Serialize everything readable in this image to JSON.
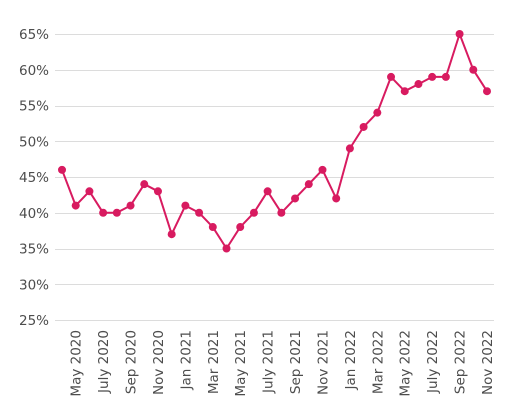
{
  "chart_data": {
    "type": "line",
    "x": [
      "Apr 2020",
      "May 2020",
      "Jun 2020",
      "July 2020",
      "Aug 2020",
      "Sep 2020",
      "Oct 2020",
      "Nov 2020",
      "Dec 2020",
      "Jan 2021",
      "Feb 2021",
      "Mar 2021",
      "Apr 2021",
      "May 2021",
      "Jun 2021",
      "July 2021",
      "Aug 2021",
      "Sep 2021",
      "Oct 2021",
      "Nov 2021",
      "Dec 2021",
      "Jan 2022",
      "Feb 2022",
      "Mar 2022",
      "Apr 2022",
      "May 2022",
      "Jun 2022",
      "July 2022",
      "Aug 2022",
      "Sep 2022",
      "Oct 2022",
      "Nov 2022"
    ],
    "x_tick_labels": [
      "May 2020",
      "July 2020",
      "Sep 2020",
      "Nov 2020",
      "Jan 2021",
      "Mar 2021",
      "May 2021",
      "July 2021",
      "Sep 2021",
      "Nov 2021",
      "Jan 2022",
      "Mar 2022",
      "May 2022",
      "July 2022",
      "Sep 2022",
      "Nov 2022"
    ],
    "series": [
      {
        "values": [
          46,
          41,
          43,
          40,
          40,
          41,
          44,
          43,
          37,
          41,
          40,
          38,
          35,
          38,
          40,
          43,
          40,
          42,
          44,
          46,
          42,
          49,
          52,
          54,
          59,
          57,
          58,
          59,
          59,
          65,
          60,
          57
        ],
        "color": "#d81b60"
      }
    ],
    "y_ticks": [
      "25%",
      "30%",
      "35%",
      "40%",
      "45%",
      "50%",
      "55%",
      "60%",
      "65%"
    ],
    "ylim": [
      25,
      65
    ],
    "y_unit": "%",
    "grid": "horizontal",
    "xlabel": "",
    "ylabel": "",
    "title": ""
  }
}
